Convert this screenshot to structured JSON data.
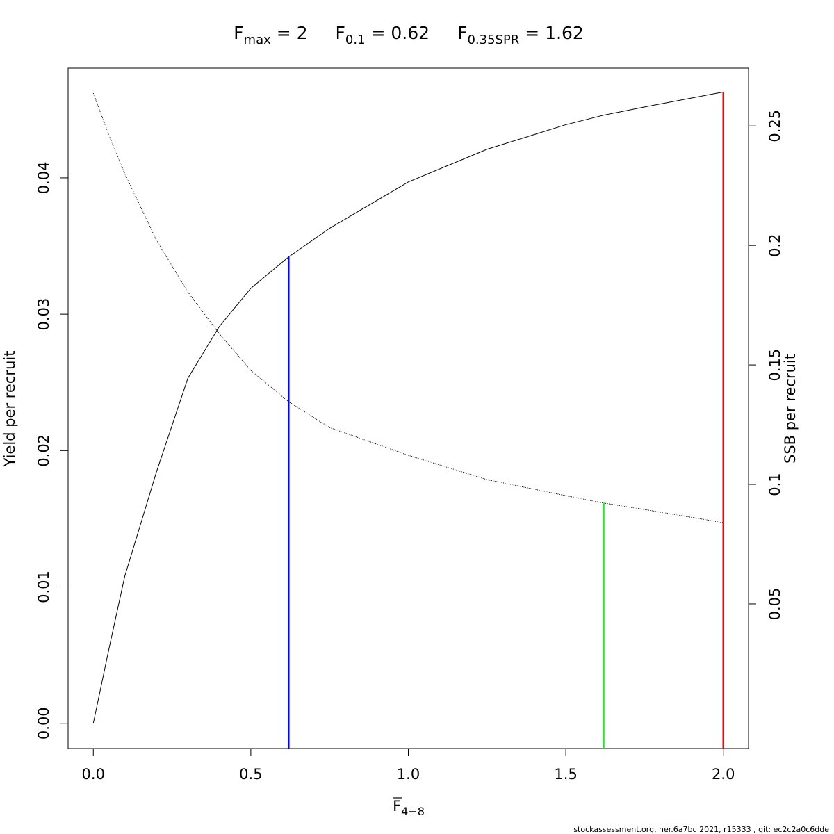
{
  "chart_data": {
    "type": "line",
    "title_parts": [
      {
        "base": "F",
        "sub": "max",
        "rest": " = 2"
      },
      {
        "base": "F",
        "sub": "0.1",
        "rest": " = 0.62"
      },
      {
        "base": "F",
        "sub": "0.35SPR",
        "rest": " = 1.62"
      }
    ],
    "x_label": {
      "base": "F",
      "sub": "4−8"
    },
    "y_label": "Yield per recruit",
    "y2_label": "SSB per recruit",
    "footer": "stockassessment.org, her.6a7bc  2021, r15333 , git: ec2c2a0c6dde",
    "x": [
      0,
      0.05,
      0.1,
      0.2,
      0.3,
      0.4,
      0.5,
      0.62,
      0.75,
      1,
      1.25,
      1.5,
      1.62,
      1.75,
      2
    ],
    "series": [
      {
        "name": "Yield per recruit",
        "color": "#000000",
        "line_style": "solid",
        "axis": "y",
        "values": [
          0,
          0.0055,
          0.0108,
          0.0184,
          0.0253,
          0.0291,
          0.0319,
          0.0342,
          0.0363,
          0.0397,
          0.0421,
          0.0439,
          0.0446,
          0.0452,
          0.0463
        ]
      },
      {
        "name": "SSB per recruit",
        "color": "#000000",
        "line_style": "dotted",
        "axis": "y2",
        "values": [
          0.2637,
          0.246,
          0.23,
          0.2023,
          0.1805,
          0.1631,
          0.1477,
          0.1346,
          0.1238,
          0.1122,
          0.102,
          0.0953,
          0.0922,
          0.0895,
          0.084
        ]
      }
    ],
    "reference_lines": [
      {
        "x": 0.62,
        "y": 0.0342,
        "axis": "y",
        "color": "#0000ff"
      },
      {
        "x": 1.62,
        "y": 0.0922,
        "axis": "y2",
        "color": "#00ff00"
      },
      {
        "x": 2,
        "y": 0.0463,
        "axis": "y",
        "color": "#ff0000"
      }
    ],
    "xlim": [
      -0.08,
      2.08
    ],
    "ylim": [
      -0.00185,
      0.04805
    ],
    "y2lim": [
      -0.0105,
      0.2742
    ],
    "xticks": [
      {
        "value": 0,
        "label": "0.0"
      },
      0.5,
      {
        "value": 1,
        "label": "1.0"
      },
      1.5,
      {
        "value": 2,
        "label": "2.0"
      }
    ],
    "yticks": [
      {
        "value": 0,
        "label": "0.00"
      },
      {
        "value": 0.01,
        "label": "0.01"
      },
      {
        "value": 0.02,
        "label": "0.02"
      },
      {
        "value": 0.03,
        "label": "0.03"
      },
      {
        "value": 0.04,
        "label": "0.04"
      }
    ],
    "y2ticks": [
      0.05,
      0.1,
      0.15,
      0.2,
      0.25
    ]
  }
}
